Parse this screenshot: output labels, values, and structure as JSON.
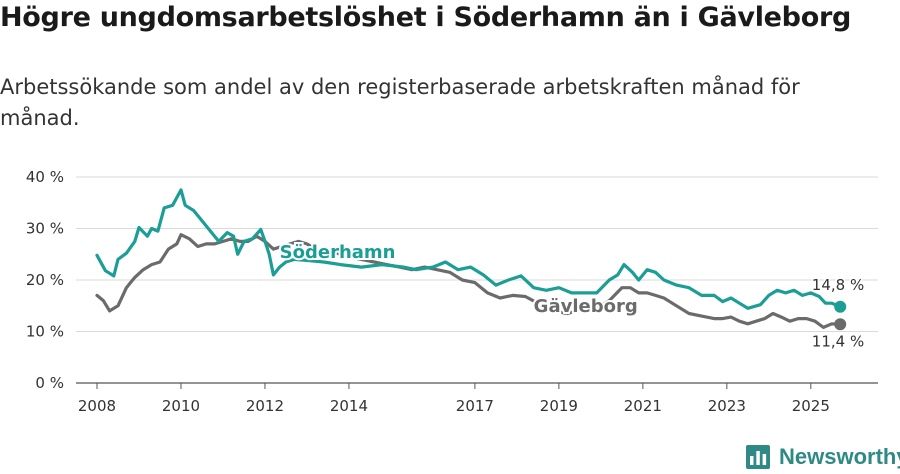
{
  "title": "Högre ungdomsarbetslöshet i Söderhamn än i Gävleborg",
  "subtitle": "Arbetssökande som andel av den registerbaserade arbetskraften månad för månad.",
  "brand": {
    "name": "Newsworthy",
    "icon": "newsworthy-logo-icon",
    "color": "#2f8a85"
  },
  "colors": {
    "soderhamn": "#1a9e95",
    "gavleborg": "#6b6b6b",
    "grid": "#d9d9d9"
  },
  "chart_data": {
    "type": "line",
    "title": "Högre ungdomsarbetslöshet i Söderhamn än i Gävleborg",
    "xlabel": "",
    "ylabel": "",
    "ylim": [
      0,
      40
    ],
    "xlim": [
      2007.5,
      2026.6
    ],
    "yticks": [
      0,
      10,
      20,
      30,
      40
    ],
    "ytick_labels": [
      "0 %",
      "10 %",
      "20 %",
      "30 %",
      "40 %"
    ],
    "xticks": [
      2008,
      2010,
      2012,
      2014,
      2017,
      2019,
      2021,
      2023,
      2025
    ],
    "xtick_labels": [
      "2008",
      "2010",
      "2012",
      "2014",
      "2017",
      "2019",
      "2021",
      "2023",
      "2025"
    ],
    "series": [
      {
        "name": "Söderhamn",
        "color": "#1a9e95",
        "label": "Söderhamn",
        "end_label": "14,8 %",
        "end_value": 14.8,
        "points": [
          [
            2008.0,
            24.8
          ],
          [
            2008.2,
            21.8
          ],
          [
            2008.4,
            20.8
          ],
          [
            2008.5,
            24.0
          ],
          [
            2008.7,
            25.2
          ],
          [
            2008.9,
            27.5
          ],
          [
            2009.0,
            30.2
          ],
          [
            2009.2,
            28.5
          ],
          [
            2009.3,
            30.0
          ],
          [
            2009.45,
            29.5
          ],
          [
            2009.6,
            34.0
          ],
          [
            2009.8,
            34.5
          ],
          [
            2009.9,
            36.0
          ],
          [
            2010.0,
            37.5
          ],
          [
            2010.1,
            34.5
          ],
          [
            2010.3,
            33.5
          ],
          [
            2010.5,
            31.5
          ],
          [
            2010.7,
            29.5
          ],
          [
            2010.9,
            27.5
          ],
          [
            2011.1,
            29.2
          ],
          [
            2011.25,
            28.5
          ],
          [
            2011.35,
            25.0
          ],
          [
            2011.5,
            27.5
          ],
          [
            2011.7,
            28.0
          ],
          [
            2011.9,
            29.8
          ],
          [
            2012.0,
            27.5
          ],
          [
            2012.1,
            25.0
          ],
          [
            2012.2,
            21.0
          ],
          [
            2012.35,
            22.5
          ],
          [
            2012.5,
            23.5
          ],
          [
            2012.7,
            24.0
          ],
          [
            2013.0,
            23.8
          ],
          [
            2013.4,
            23.5
          ],
          [
            2013.8,
            23.0
          ],
          [
            2014.3,
            22.5
          ],
          [
            2014.8,
            23.0
          ],
          [
            2015.3,
            22.5
          ],
          [
            2015.6,
            22.0
          ],
          [
            2016.0,
            22.5
          ],
          [
            2016.3,
            23.5
          ],
          [
            2016.6,
            22.0
          ],
          [
            2016.9,
            22.5
          ],
          [
            2017.2,
            21.0
          ],
          [
            2017.5,
            19.0
          ],
          [
            2017.8,
            20.0
          ],
          [
            2018.1,
            20.8
          ],
          [
            2018.4,
            18.5
          ],
          [
            2018.7,
            18.0
          ],
          [
            2019.0,
            18.5
          ],
          [
            2019.3,
            17.5
          ],
          [
            2019.6,
            17.5
          ],
          [
            2019.9,
            17.5
          ],
          [
            2020.2,
            20.0
          ],
          [
            2020.4,
            21.0
          ],
          [
            2020.55,
            23.0
          ],
          [
            2020.75,
            21.5
          ],
          [
            2020.9,
            20.0
          ],
          [
            2021.1,
            22.0
          ],
          [
            2021.3,
            21.5
          ],
          [
            2021.5,
            20.0
          ],
          [
            2021.8,
            19.0
          ],
          [
            2022.1,
            18.5
          ],
          [
            2022.4,
            17.0
          ],
          [
            2022.7,
            17.0
          ],
          [
            2022.9,
            15.8
          ],
          [
            2023.1,
            16.5
          ],
          [
            2023.3,
            15.5
          ],
          [
            2023.5,
            14.5
          ],
          [
            2023.8,
            15.2
          ],
          [
            2024.0,
            17.0
          ],
          [
            2024.2,
            18.0
          ],
          [
            2024.4,
            17.5
          ],
          [
            2024.6,
            18.0
          ],
          [
            2024.8,
            17.0
          ],
          [
            2025.0,
            17.5
          ],
          [
            2025.2,
            16.8
          ],
          [
            2025.35,
            15.5
          ],
          [
            2025.5,
            15.5
          ],
          [
            2025.7,
            14.8
          ]
        ]
      },
      {
        "name": "Gävleborg",
        "color": "#6b6b6b",
        "label": "Gävleborg",
        "end_label": "11,4 %",
        "end_value": 11.4,
        "points": [
          [
            2008.0,
            17.0
          ],
          [
            2008.15,
            16.0
          ],
          [
            2008.3,
            14.0
          ],
          [
            2008.5,
            15.0
          ],
          [
            2008.7,
            18.5
          ],
          [
            2008.9,
            20.5
          ],
          [
            2009.1,
            22.0
          ],
          [
            2009.3,
            23.0
          ],
          [
            2009.5,
            23.5
          ],
          [
            2009.7,
            26.0
          ],
          [
            2009.9,
            27.0
          ],
          [
            2010.0,
            28.8
          ],
          [
            2010.2,
            28.0
          ],
          [
            2010.4,
            26.5
          ],
          [
            2010.6,
            27.0
          ],
          [
            2010.8,
            27.0
          ],
          [
            2011.0,
            27.5
          ],
          [
            2011.2,
            28.0
          ],
          [
            2011.4,
            27.5
          ],
          [
            2011.6,
            27.5
          ],
          [
            2011.8,
            28.5
          ],
          [
            2012.0,
            27.5
          ],
          [
            2012.2,
            26.0
          ],
          [
            2012.4,
            26.5
          ],
          [
            2012.6,
            27.0
          ],
          [
            2012.8,
            27.5
          ],
          [
            2013.0,
            27.0
          ],
          [
            2013.2,
            26.0
          ],
          [
            2013.4,
            25.5
          ],
          [
            2013.6,
            25.5
          ],
          [
            2013.8,
            25.0
          ],
          [
            2014.0,
            24.5
          ],
          [
            2014.3,
            24.0
          ],
          [
            2014.6,
            23.5
          ],
          [
            2014.9,
            23.0
          ],
          [
            2015.2,
            22.5
          ],
          [
            2015.5,
            22.0
          ],
          [
            2015.8,
            22.5
          ],
          [
            2016.1,
            22.0
          ],
          [
            2016.4,
            21.5
          ],
          [
            2016.7,
            20.0
          ],
          [
            2017.0,
            19.5
          ],
          [
            2017.3,
            17.5
          ],
          [
            2017.6,
            16.5
          ],
          [
            2017.9,
            17.0
          ],
          [
            2018.2,
            16.8
          ],
          [
            2018.5,
            15.5
          ],
          [
            2018.8,
            14.0
          ],
          [
            2019.0,
            13.8
          ],
          [
            2019.2,
            13.5
          ],
          [
            2019.45,
            14.0
          ],
          [
            2019.7,
            14.5
          ],
          [
            2019.9,
            14.5
          ],
          [
            2020.2,
            16.0
          ],
          [
            2020.5,
            18.5
          ],
          [
            2020.7,
            18.5
          ],
          [
            2020.9,
            17.5
          ],
          [
            2021.1,
            17.5
          ],
          [
            2021.3,
            17.0
          ],
          [
            2021.5,
            16.5
          ],
          [
            2021.8,
            15.0
          ],
          [
            2022.1,
            13.5
          ],
          [
            2022.4,
            13.0
          ],
          [
            2022.7,
            12.5
          ],
          [
            2022.9,
            12.5
          ],
          [
            2023.1,
            12.8
          ],
          [
            2023.3,
            12.0
          ],
          [
            2023.5,
            11.5
          ],
          [
            2023.7,
            12.0
          ],
          [
            2023.9,
            12.5
          ],
          [
            2024.1,
            13.5
          ],
          [
            2024.3,
            12.8
          ],
          [
            2024.5,
            12.0
          ],
          [
            2024.7,
            12.5
          ],
          [
            2024.9,
            12.5
          ],
          [
            2025.1,
            12.0
          ],
          [
            2025.3,
            10.8
          ],
          [
            2025.5,
            11.5
          ],
          [
            2025.7,
            11.4
          ]
        ]
      }
    ]
  }
}
